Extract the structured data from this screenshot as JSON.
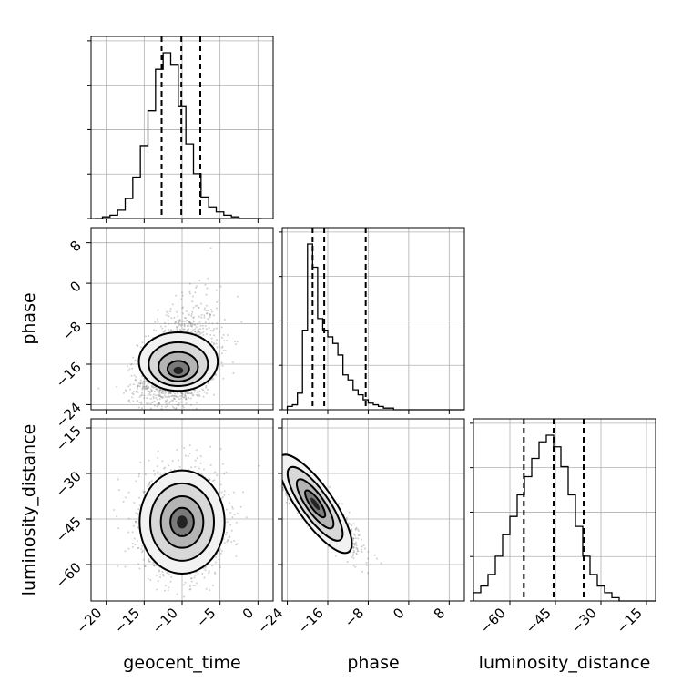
{
  "chart_data": {
    "type": "corner",
    "parameters": [
      "geocent_time",
      "phase",
      "luminosity_distance"
    ],
    "axis_labels": {
      "geocent_time": "geocent_time",
      "phase": "phase",
      "luminosity_distance": "luminosity_distance"
    },
    "ranges": {
      "geocent_time": [
        -22,
        2
      ],
      "phase": [
        -25,
        11
      ],
      "luminosity_distance": [
        -72,
        -12
      ]
    },
    "ticks": {
      "geocent_time": [
        -20,
        -15,
        -10,
        -5,
        0
      ],
      "phase": [
        -24,
        -16,
        -8,
        0,
        8
      ],
      "luminosity_distance": [
        -60,
        -45,
        -30,
        -15
      ]
    },
    "grid": true,
    "histograms": {
      "geocent_time": {
        "bin_start": -21.5,
        "bin_width": 1,
        "counts": [
          0,
          1,
          2,
          5,
          12,
          25,
          44,
          65,
          90,
          100,
          93,
          68,
          45,
          27,
          13,
          7,
          4,
          2,
          1,
          0,
          0,
          0
        ],
        "quantiles": [
          -12.7,
          -10.1,
          -7.6
        ]
      },
      "phase": {
        "bin_start": -24,
        "bin_width": 1,
        "counts": [
          2,
          3,
          10,
          48,
          100,
          86,
          55,
          48,
          44,
          40,
          33,
          21,
          18,
          12,
          9,
          6,
          4,
          3,
          2,
          1,
          1,
          0,
          0,
          0,
          0,
          0,
          0,
          0,
          0,
          0,
          0,
          0,
          0,
          0,
          0
        ],
        "quantiles": [
          -19.0,
          -16.7,
          -8.5
        ]
      },
      "luminosity_distance": {
        "bin_start": -72,
        "bin_width": 2.4,
        "counts": [
          5,
          9,
          16,
          27,
          40,
          51,
          64,
          75,
          86,
          96,
          100,
          93,
          81,
          64,
          45,
          27,
          16,
          9,
          5,
          2,
          0,
          0,
          0,
          0,
          0
        ],
        "quantiles": [
          -55.4,
          -45.6,
          -35.7
        ]
      }
    },
    "densities": [
      {
        "x": "geocent_time",
        "y": "phase",
        "peak": [
          -10.5,
          -17.5
        ],
        "spread": [
          2.6,
          3.4
        ],
        "correlation": 0.35,
        "skew_up": true
      },
      {
        "x": "geocent_time",
        "y": "luminosity_distance",
        "peak": [
          -10,
          -46
        ],
        "spread": [
          2.8,
          8.5
        ],
        "correlation": 0.0,
        "skew_up": false
      },
      {
        "x": "phase",
        "y": "luminosity_distance",
        "peak": [
          -18.5,
          -40
        ],
        "spread": [
          4.0,
          7.0
        ],
        "correlation": -0.9,
        "skew_up": false
      }
    ]
  }
}
